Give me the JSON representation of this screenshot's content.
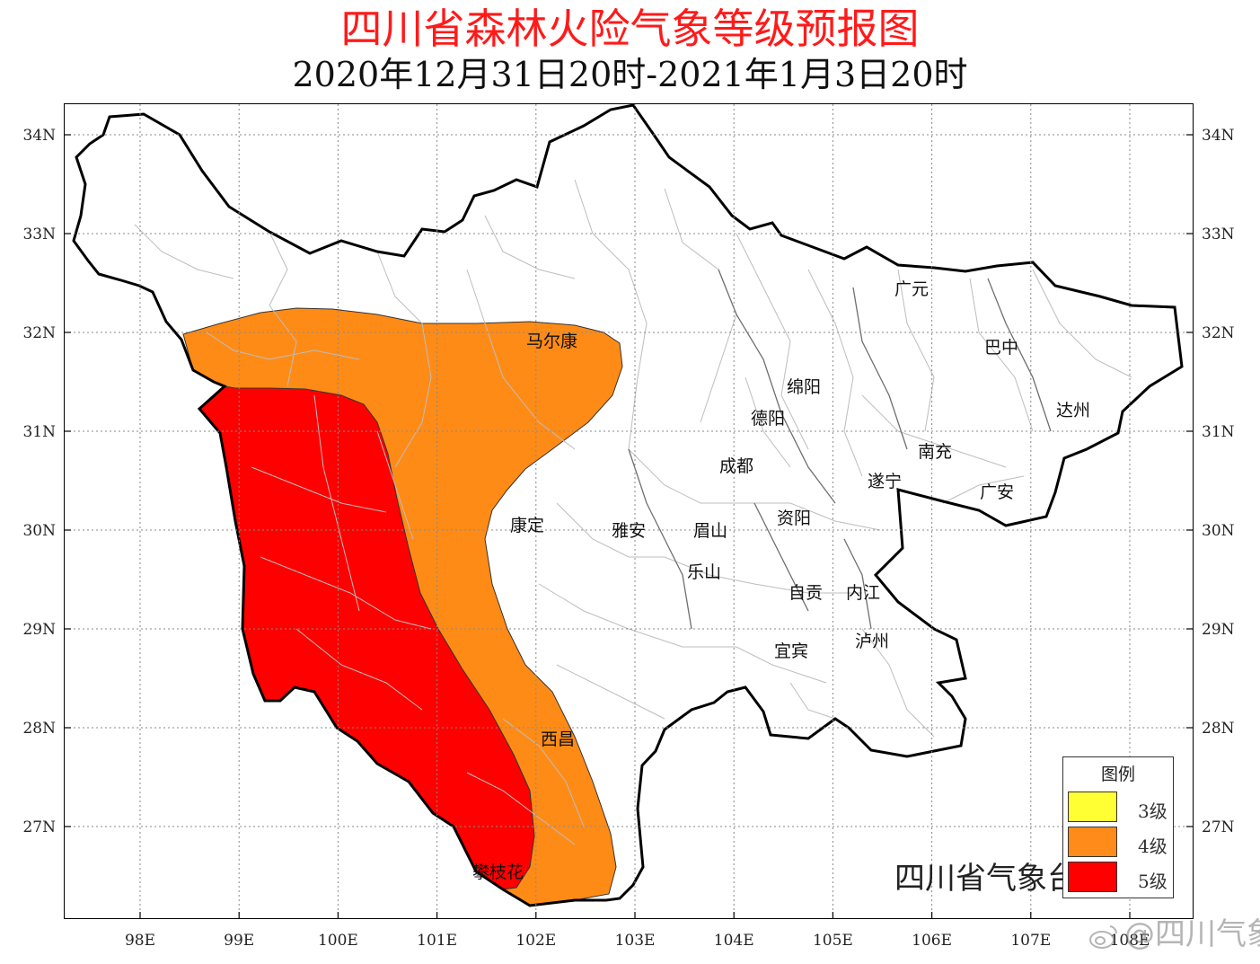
{
  "title": {
    "main": "四川省森林火险气象等级预报图",
    "sub": "2020年12月31日20时-2021年1月3日20时",
    "main_color": "#ff1a1a"
  },
  "axes": {
    "lon_ticks": [
      "98E",
      "99E",
      "100E",
      "101E",
      "102E",
      "103E",
      "104E",
      "105E",
      "106E",
      "107E",
      "108E"
    ],
    "lat_ticks": [
      "34N",
      "33N",
      "32N",
      "31N",
      "30N",
      "29N",
      "28N",
      "27N"
    ],
    "grid": "dotted"
  },
  "cities": [
    {
      "name": "马尔康"
    },
    {
      "name": "广元"
    },
    {
      "name": "巴中"
    },
    {
      "name": "绵阳"
    },
    {
      "name": "德阳"
    },
    {
      "name": "达州"
    },
    {
      "name": "南充"
    },
    {
      "name": "成都"
    },
    {
      "name": "遂宁"
    },
    {
      "name": "广安"
    },
    {
      "name": "康定"
    },
    {
      "name": "雅安"
    },
    {
      "name": "眉山"
    },
    {
      "name": "资阳"
    },
    {
      "name": "乐山"
    },
    {
      "name": "自贡"
    },
    {
      "name": "内江"
    },
    {
      "name": "宜宾"
    },
    {
      "name": "泸州"
    },
    {
      "name": "西昌"
    },
    {
      "name": "攀枝花"
    }
  ],
  "legend": {
    "title": "图例",
    "items": [
      {
        "label": "3级",
        "color": "#ffff33"
      },
      {
        "label": "4级",
        "color": "#ff8c1a"
      },
      {
        "label": "5级",
        "color": "#ff0000"
      }
    ]
  },
  "credit": "四川省气象台制作",
  "watermark": "@四川气象",
  "colors": {
    "level4_fill": "#ff8b17",
    "level5_fill": "#ff0000",
    "province_border": "#000000",
    "county_border": "#bdbdbd"
  }
}
